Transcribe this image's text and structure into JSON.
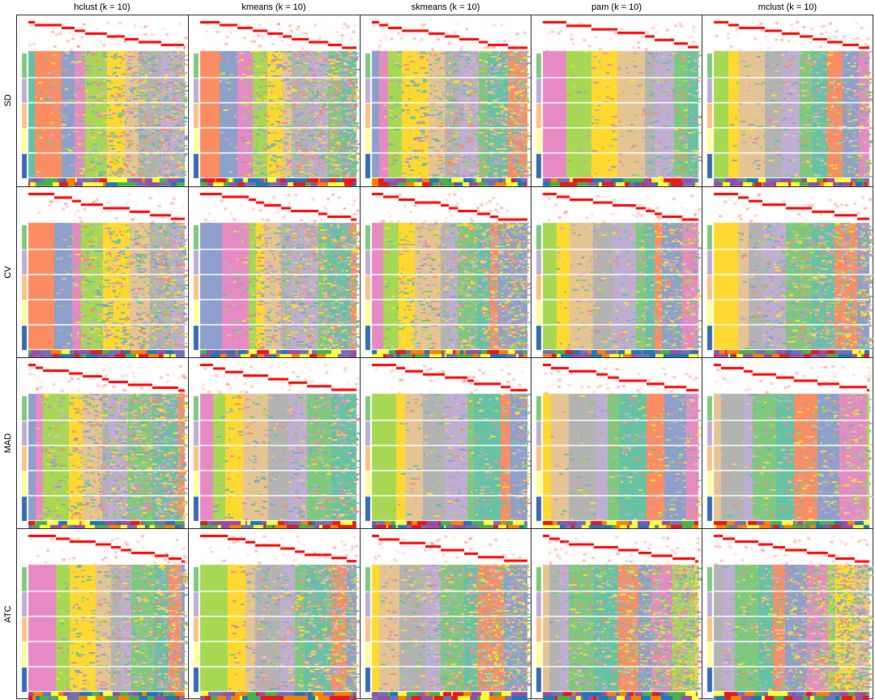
{
  "chart_data": {
    "type": "heatmap",
    "columns": [
      "hclust (k = 10)",
      "kmeans (k = 10)",
      "skmeans (k = 10)",
      "pam (k = 10)",
      "mclust (k = 10)"
    ],
    "rows": [
      "SD",
      "CV",
      "MAD",
      "ATC"
    ],
    "class_colors": [
      "#66C2A5",
      "#FC8D62",
      "#8DA0CB",
      "#E78AC3",
      "#A6D854",
      "#FFD92F",
      "#E5C494",
      "#B3B3B3",
      "#BEAED4",
      "#7FC97F"
    ],
    "group_colors": [
      "#7FC97F",
      "#BEAED4",
      "#FDC086",
      "#FFFF99",
      "#386CB0"
    ],
    "membership_color": "#FF0000"
  }
}
